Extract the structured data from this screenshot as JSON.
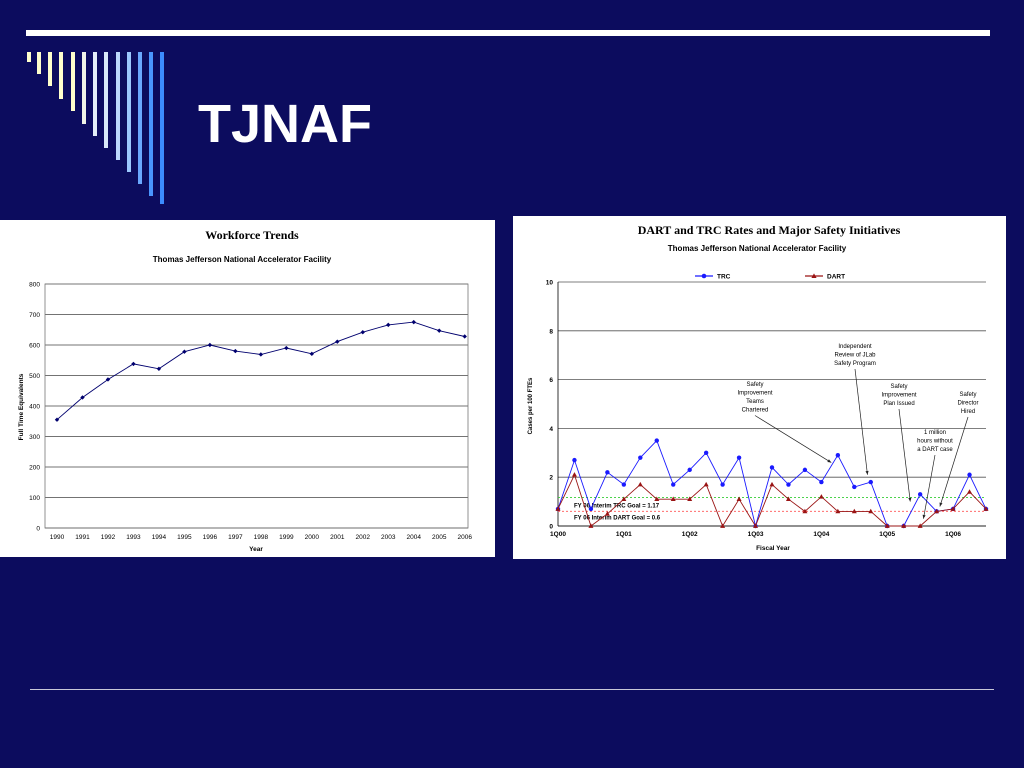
{
  "slide": {
    "title": "TJNAF",
    "colors": {
      "background": "#0c0c5e",
      "rule": "#ffffff",
      "accent_bars": [
        "#ffffcc",
        "#d8e8f8",
        "#9cc8ff",
        "#3c8cff"
      ]
    }
  },
  "chart_data": [
    {
      "type": "line",
      "title": "Workforce Trends",
      "subtitle": "Thomas Jefferson National Accelerator Facility",
      "xlabel": "Year",
      "ylabel": "Full Time Equivalents",
      "categories": [
        "1990",
        "1991",
        "1992",
        "1993",
        "1994",
        "1995",
        "1996",
        "1997",
        "1998",
        "1999",
        "2000",
        "2001",
        "2002",
        "2003",
        "2004",
        "2005",
        "2006"
      ],
      "series": [
        {
          "values": [
            355,
            428,
            487,
            538,
            522,
            578,
            600,
            580,
            569,
            590,
            571,
            611,
            642,
            666,
            675,
            647,
            628
          ],
          "color": "#00006e"
        }
      ],
      "ylim": [
        0,
        800
      ],
      "yticks": [
        0,
        100,
        200,
        300,
        400,
        500,
        600,
        700,
        800
      ],
      "grid": true,
      "legend": "none"
    },
    {
      "type": "line",
      "title": "DART and TRC Rates and Major Safety Initiatives",
      "subtitle": "Thomas Jefferson National Accelerator Facility",
      "xlabel": "Fiscal Year",
      "ylabel": "Cases per 100 FTEs",
      "categories": [
        "1Q00",
        "1Q01",
        "1Q02",
        "1Q03",
        "1Q04",
        "1Q05",
        "1Q06"
      ],
      "ylim": [
        0,
        10
      ],
      "yticks": [
        0,
        2,
        4,
        6,
        8,
        10
      ],
      "grid": true,
      "legend": "top",
      "series": [
        {
          "name": "TRC",
          "color": "#1a1aff",
          "marker": "circle",
          "x": [
            0,
            1,
            2,
            3,
            4,
            5,
            6,
            7,
            8,
            9,
            10,
            11,
            12,
            13,
            14,
            15,
            16,
            17,
            18,
            19,
            20,
            21,
            22,
            23,
            24,
            25,
            26
          ],
          "values": [
            0.7,
            2.7,
            0.7,
            2.2,
            1.7,
            2.8,
            3.5,
            1.7,
            2.3,
            3.0,
            1.7,
            2.8,
            0.0,
            2.4,
            1.7,
            2.3,
            1.8,
            2.9,
            1.6,
            1.8,
            0.0,
            0.0,
            1.3,
            0.6,
            0.7,
            2.1,
            0.7
          ]
        },
        {
          "name": "DART",
          "color": "#9a1414",
          "marker": "triangle",
          "x": [
            0,
            1,
            2,
            3,
            4,
            5,
            6,
            7,
            8,
            9,
            10,
            11,
            12,
            13,
            14,
            15,
            16,
            17,
            18,
            19,
            20,
            21,
            22,
            23,
            24,
            25,
            26
          ],
          "values": [
            0.7,
            2.1,
            0.0,
            0.5,
            1.1,
            1.7,
            1.1,
            1.1,
            1.1,
            1.7,
            0.0,
            1.1,
            0.0,
            1.7,
            1.1,
            0.6,
            1.2,
            0.6,
            0.6,
            0.6,
            0.0,
            0.0,
            0.0,
            0.6,
            0.7,
            1.4,
            0.7
          ]
        }
      ],
      "reference_lines": [
        {
          "label": "FY 06 Interim TRC Goal = 1.17",
          "value": 1.17,
          "color": "#33cc33"
        },
        {
          "label": "FY 06 Interim DART Goal = 0.6",
          "value": 0.6,
          "color": "#ff5555"
        }
      ],
      "annotations": [
        {
          "text": [
            "Independent",
            "Review of JLab",
            "Safety Program"
          ],
          "x": 18.8,
          "y": 2.1
        },
        {
          "text": [
            "Safety",
            "Improvement",
            "Teams",
            "Chartered"
          ],
          "x": 16.6,
          "y": 2.6
        },
        {
          "text": [
            "Safety",
            "Improvement",
            "Plan Issued"
          ],
          "x": 21.4,
          "y": 1.0
        },
        {
          "text": [
            "1 million",
            "hours without",
            "a DART case"
          ],
          "x": 22.2,
          "y": 0.3
        },
        {
          "text": [
            "Safety",
            "Director",
            "Hired"
          ],
          "x": 23.2,
          "y": 0.8
        }
      ]
    }
  ]
}
